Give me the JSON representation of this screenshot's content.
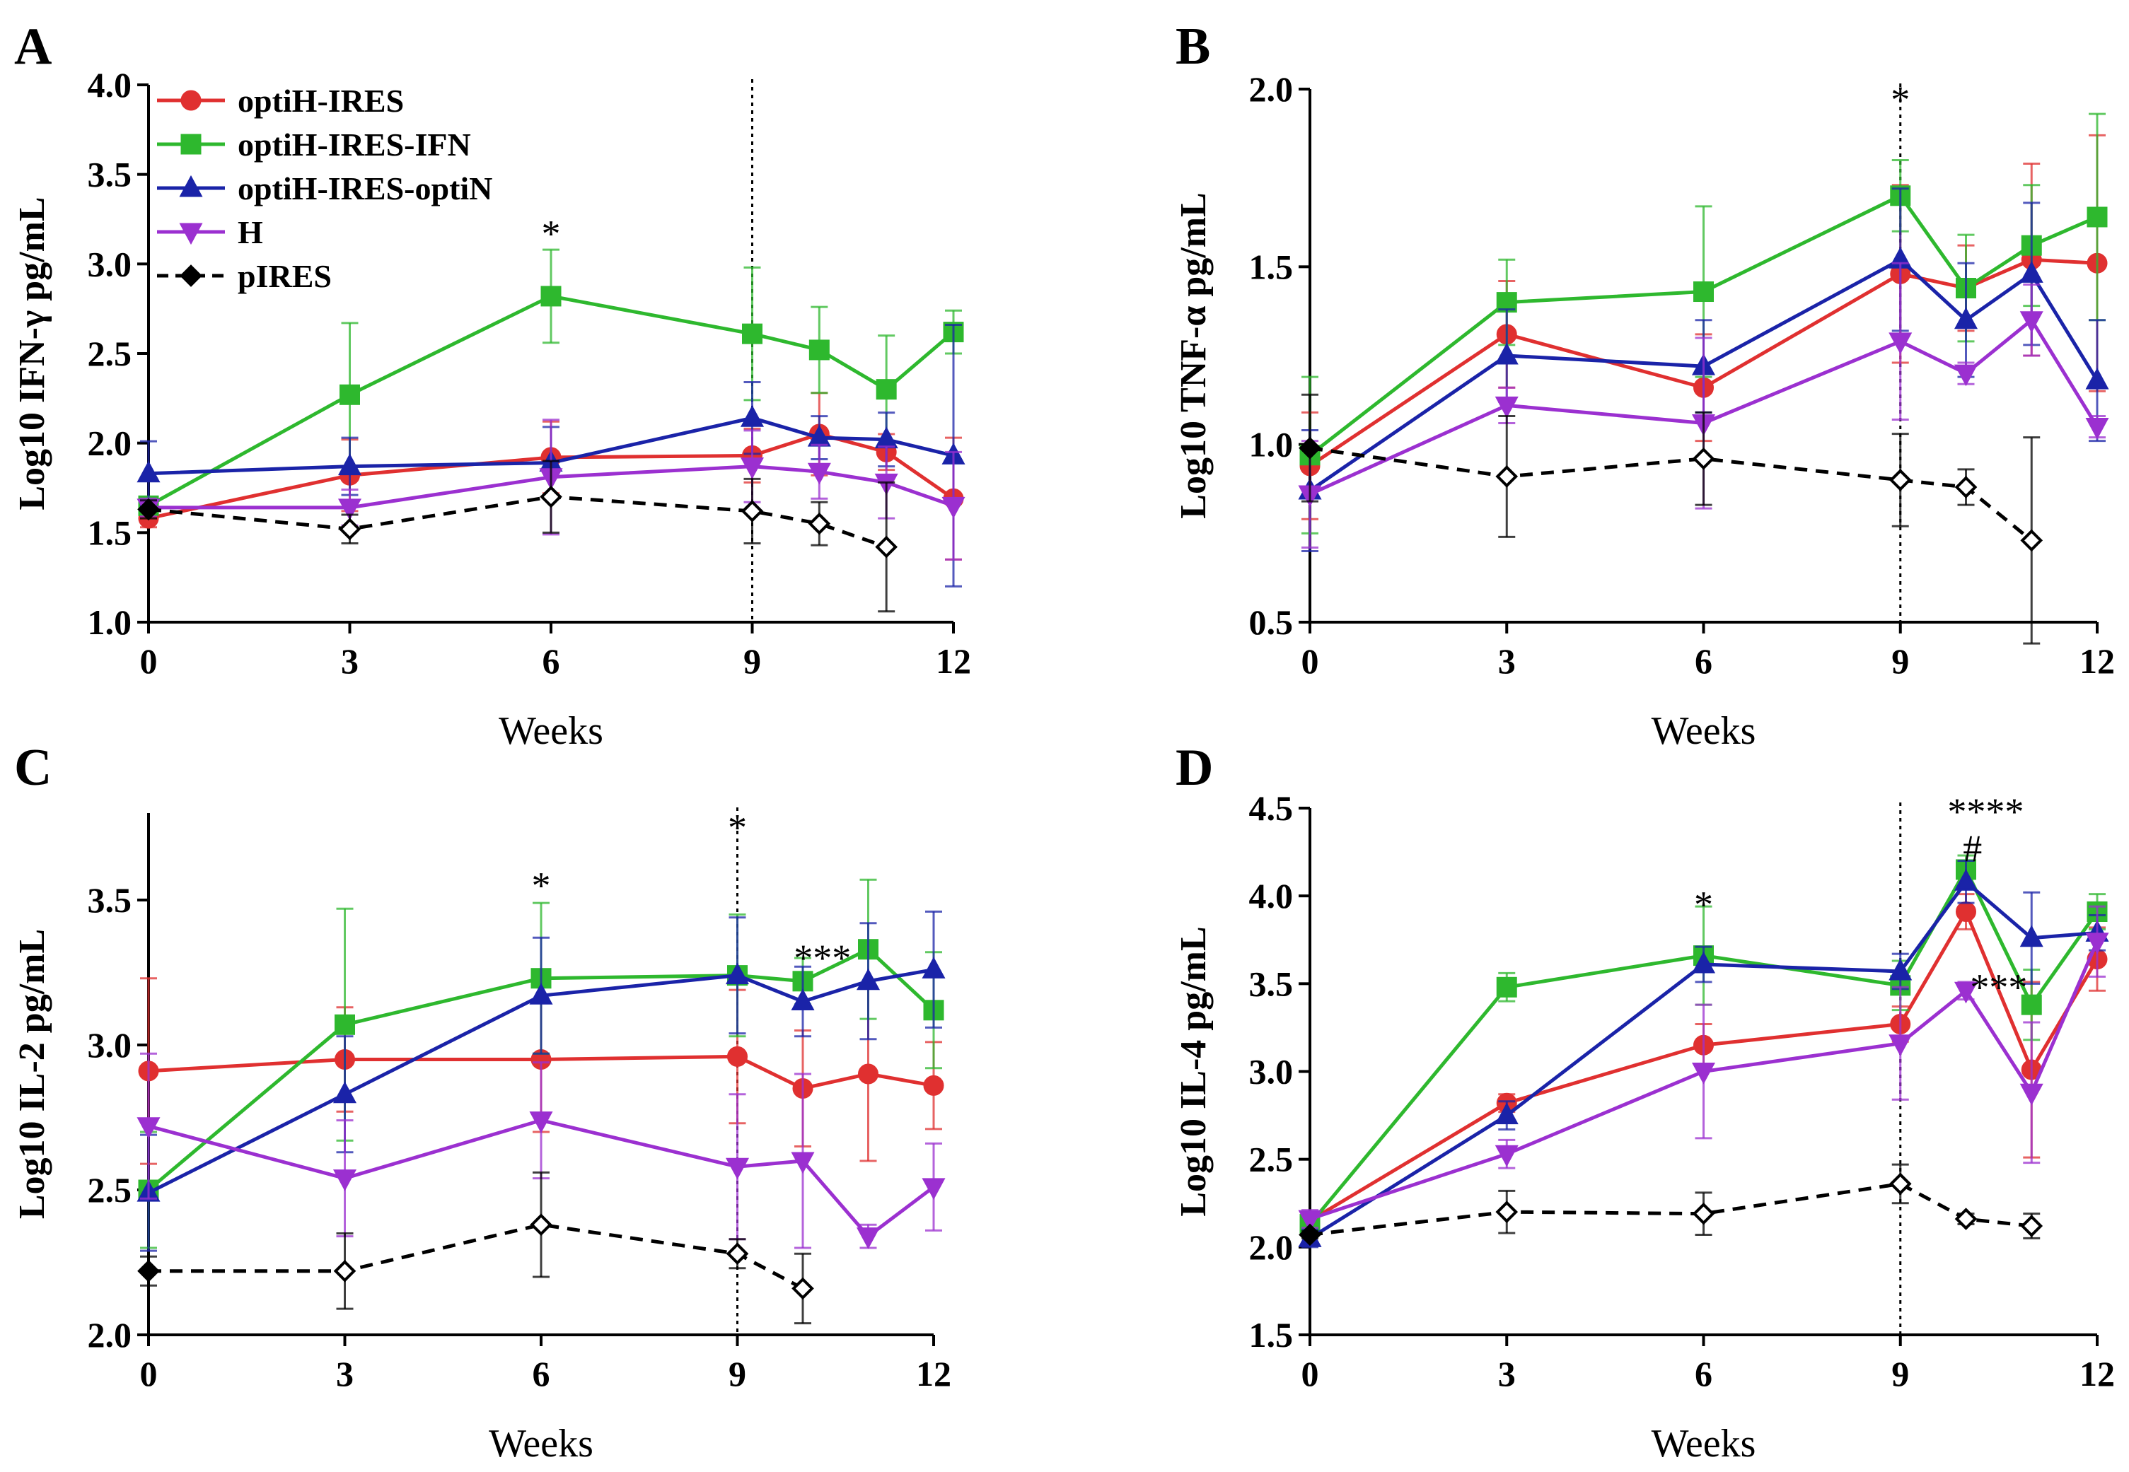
{
  "figure": {
    "legend": {
      "entries": [
        {
          "name": "optiH-IRES",
          "color": "#e03030",
          "marker": "circle",
          "dashed": false
        },
        {
          "name": "optiH-IRES-IFN",
          "color": "#2eb82e",
          "marker": "square",
          "dashed": false
        },
        {
          "name": "optiH-IRES-optiN",
          "color": "#1a23a8",
          "marker": "triangle-up",
          "dashed": false
        },
        {
          "name": "H",
          "color": "#9b30d0",
          "marker": "triangle-down",
          "dashed": false
        },
        {
          "name": "pIRES",
          "color": "#000000",
          "marker": "diamond",
          "dashed": true
        }
      ]
    }
  },
  "chart_data": [
    {
      "panel": "A",
      "type": "line",
      "xlabel": "Weeks",
      "ylabel": "Log10 IFN-γ pg/mL",
      "xlim": [
        0,
        12
      ],
      "ylim": [
        1.0,
        4.0
      ],
      "xticks": [
        0,
        3,
        6,
        9,
        12
      ],
      "xtick_labels": [
        "0",
        "3",
        "6",
        "9",
        "12"
      ],
      "yticks": [
        1.0,
        1.5,
        2.0,
        2.5,
        3.0,
        3.5,
        4.0
      ],
      "ytick_labels": [
        "1.0",
        "1.5",
        "2.0",
        "2.5",
        "3.0",
        "3.5",
        "4.0"
      ],
      "box": false,
      "vline": 9,
      "legend": true,
      "series": [
        {
          "name": "optiH-IRES",
          "x": [
            0,
            3,
            6,
            9,
            10,
            11,
            12
          ],
          "y": [
            1.58,
            1.82,
            1.92,
            1.93,
            2.05,
            1.95,
            1.69
          ],
          "err": [
            0.05,
            0.2,
            0.2,
            0.15,
            0.23,
            0.1,
            0.34
          ]
        },
        {
          "name": "optiH-IRES-IFN",
          "x": [
            0,
            3,
            6,
            9,
            10,
            11,
            12
          ],
          "y": [
            1.65,
            2.27,
            2.82,
            2.61,
            2.52,
            2.3,
            2.62
          ],
          "err": [
            0.05,
            0.4,
            0.26,
            0.37,
            0.24,
            0.3,
            0.12
          ]
        },
        {
          "name": "optiH-IRES-optiN",
          "x": [
            0,
            3,
            6,
            9,
            10,
            11,
            12
          ],
          "y": [
            1.83,
            1.87,
            1.89,
            2.14,
            2.03,
            2.02,
            1.93
          ],
          "err": [
            0.18,
            0.16,
            0.2,
            0.2,
            0.12,
            0.15,
            0.73
          ]
        },
        {
          "name": "H",
          "x": [
            0,
            3,
            6,
            9,
            10,
            11,
            12
          ],
          "y": [
            1.64,
            1.64,
            1.81,
            1.87,
            1.84,
            1.78,
            1.65
          ],
          "err": [
            0.05,
            0.1,
            0.32,
            0.2,
            0.15,
            0.2,
            0.3
          ]
        },
        {
          "name": "pIRES",
          "x": [
            0,
            3,
            6,
            9,
            10,
            11
          ],
          "y": [
            1.63,
            1.52,
            1.7,
            1.62,
            1.55,
            1.42
          ],
          "err": [
            0.05,
            0.08,
            0.2,
            0.18,
            0.12,
            0.36
          ]
        }
      ],
      "annotations": [
        {
          "text": "*",
          "x": 6,
          "y": 3.17
        }
      ]
    },
    {
      "panel": "B",
      "type": "line",
      "xlabel": "Weeks",
      "ylabel": "Log10 TNF-α pg/mL",
      "xlim": [
        0,
        12
      ],
      "ylim": [
        0.5,
        2.0
      ],
      "xticks": [
        0,
        3,
        6,
        9,
        12
      ],
      "xtick_labels": [
        "0",
        "3",
        "6",
        "9",
        "12"
      ],
      "yticks": [
        0.5,
        1.0,
        1.5,
        2.0
      ],
      "ytick_labels": [
        "0.5",
        "1.0",
        "1.5",
        "2.0"
      ],
      "box": false,
      "vline": 9,
      "legend": false,
      "series": [
        {
          "name": "optiH-IRES",
          "x": [
            0,
            3,
            6,
            9,
            10,
            11,
            12
          ],
          "y": [
            0.94,
            1.31,
            1.16,
            1.48,
            1.44,
            1.52,
            1.51
          ],
          "err": [
            0.15,
            0.15,
            0.15,
            0.25,
            0.12,
            0.27,
            0.36
          ]
        },
        {
          "name": "optiH-IRES-IFN",
          "x": [
            0,
            3,
            6,
            9,
            10,
            11,
            12
          ],
          "y": [
            0.97,
            1.4,
            1.43,
            1.7,
            1.44,
            1.56,
            1.64
          ],
          "err": [
            0.22,
            0.12,
            0.24,
            0.1,
            0.15,
            0.17,
            0.29
          ]
        },
        {
          "name": "optiH-IRES-optiN",
          "x": [
            0,
            3,
            6,
            9,
            10,
            11,
            12
          ],
          "y": [
            0.87,
            1.25,
            1.22,
            1.52,
            1.35,
            1.48,
            1.18
          ],
          "err": [
            0.17,
            0.13,
            0.13,
            0.2,
            0.16,
            0.2,
            0.17
          ]
        },
        {
          "name": "H",
          "x": [
            0,
            3,
            6,
            9,
            10,
            11,
            12
          ],
          "y": [
            0.86,
            1.11,
            1.06,
            1.29,
            1.2,
            1.35,
            1.05
          ],
          "err": [
            0.15,
            0.05,
            0.24,
            0.22,
            0.03,
            0.1,
            0.03
          ]
        },
        {
          "name": "pIRES",
          "x": [
            0,
            3,
            6,
            9,
            10,
            11
          ],
          "y": [
            0.99,
            0.91,
            0.96,
            0.9,
            0.88,
            0.73
          ],
          "err": [
            0.15,
            0.17,
            0.13,
            0.13,
            0.05,
            0.29
          ]
        }
      ],
      "annotations": [
        {
          "text": "*",
          "x": 9,
          "y": 1.97
        }
      ]
    },
    {
      "panel": "C",
      "type": "line",
      "xlabel": "Weeks",
      "ylabel": "Log10 IL-2 pg/mL",
      "xlim": [
        0,
        12
      ],
      "ylim": [
        2.0,
        3.8
      ],
      "xticks": [
        0,
        3,
        6,
        9,
        12
      ],
      "xtick_labels": [
        "0",
        "3",
        "6",
        "9",
        "12"
      ],
      "yticks": [
        2.0,
        2.5,
        3.0,
        3.5
      ],
      "ytick_labels": [
        "2.0",
        "2.5",
        "3.0",
        "3.5"
      ],
      "box": false,
      "vline": 9,
      "legend": false,
      "series": [
        {
          "name": "optiH-IRES",
          "x": [
            0,
            3,
            6,
            9,
            10,
            11,
            12
          ],
          "y": [
            2.91,
            2.95,
            2.95,
            2.96,
            2.85,
            2.9,
            2.86
          ],
          "err": [
            0.32,
            0.18,
            0.25,
            0.23,
            0.2,
            0.3,
            0.15
          ]
        },
        {
          "name": "optiH-IRES-IFN",
          "x": [
            0,
            3,
            6,
            9,
            10,
            11,
            12
          ],
          "y": [
            2.5,
            3.07,
            3.23,
            3.24,
            3.22,
            3.33,
            3.12
          ],
          "err": [
            0.2,
            0.4,
            0.26,
            0.21,
            0.08,
            0.24,
            0.2
          ]
        },
        {
          "name": "optiH-IRES-optiN",
          "x": [
            0,
            3,
            6,
            9,
            10,
            11,
            12
          ],
          "y": [
            2.49,
            2.83,
            3.17,
            3.24,
            3.15,
            3.22,
            3.26
          ],
          "err": [
            0.2,
            0.2,
            0.2,
            0.2,
            0.12,
            0.2,
            0.2
          ]
        },
        {
          "name": "H",
          "x": [
            0,
            3,
            6,
            9,
            10,
            11,
            12
          ],
          "y": [
            2.72,
            2.54,
            2.74,
            2.58,
            2.6,
            2.34,
            2.51
          ],
          "err": [
            0.25,
            0.2,
            0.2,
            0.25,
            0.3,
            0.04,
            0.15
          ]
        },
        {
          "name": "pIRES",
          "x": [
            0,
            3,
            6,
            9,
            10
          ],
          "y": [
            2.22,
            2.22,
            2.38,
            2.28,
            2.16
          ],
          "err": [
            0.05,
            0.13,
            0.18,
            0.05,
            0.12
          ]
        }
      ],
      "annotations": [
        {
          "text": "*",
          "x": 6,
          "y": 3.55
        },
        {
          "text": "*",
          "x": 9,
          "y": 3.75
        },
        {
          "text": "***",
          "x": 10.3,
          "y": 3.3
        }
      ]
    },
    {
      "panel": "D",
      "type": "line",
      "xlabel": "Weeks",
      "ylabel": "Log10 IL-4 pg/mL",
      "xlim": [
        0,
        12
      ],
      "ylim": [
        1.5,
        4.5
      ],
      "xticks": [
        0,
        3,
        6,
        9,
        12
      ],
      "xtick_labels": [
        "0",
        "3",
        "6",
        "9",
        "12"
      ],
      "yticks": [
        1.5,
        2.0,
        2.5,
        3.0,
        3.5,
        4.0,
        4.5
      ],
      "ytick_labels": [
        "1.5",
        "2.0",
        "2.5",
        "3.0",
        "3.5",
        "4.0",
        "4.5"
      ],
      "box": false,
      "vline": 9,
      "legend": false,
      "series": [
        {
          "name": "optiH-IRES",
          "x": [
            0,
            3,
            6,
            9,
            10,
            11,
            12
          ],
          "y": [
            2.15,
            2.82,
            3.15,
            3.27,
            3.91,
            3.01,
            3.64
          ],
          "err": [
            0.05,
            0.05,
            0.12,
            0.1,
            0.1,
            0.5,
            0.18
          ]
        },
        {
          "name": "optiH-IRES-IFN",
          "x": [
            0,
            3,
            6,
            9,
            10,
            11,
            12
          ],
          "y": [
            2.13,
            3.48,
            3.66,
            3.49,
            4.15,
            3.38,
            3.91
          ],
          "err": [
            0.05,
            0.08,
            0.28,
            0.14,
            0.08,
            0.2,
            0.1
          ]
        },
        {
          "name": "optiH-IRES-optiN",
          "x": [
            0,
            3,
            6,
            9,
            10,
            11,
            12
          ],
          "y": [
            2.05,
            2.75,
            3.61,
            3.57,
            4.08,
            3.76,
            3.79
          ],
          "err": [
            0.05,
            0.08,
            0.1,
            0.1,
            0.12,
            0.26,
            0.1
          ]
        },
        {
          "name": "H",
          "x": [
            0,
            3,
            6,
            9,
            10,
            11,
            12
          ],
          "y": [
            2.16,
            2.53,
            3.0,
            3.16,
            3.46,
            2.88,
            3.74
          ],
          "err": [
            0.05,
            0.08,
            0.38,
            0.32,
            0.05,
            0.4,
            0.2
          ]
        },
        {
          "name": "pIRES",
          "x": [
            0,
            3,
            6,
            9,
            10,
            11
          ],
          "y": [
            2.07,
            2.2,
            2.19,
            2.36,
            2.16,
            2.12
          ],
          "err": [
            0.02,
            0.12,
            0.12,
            0.11,
            0.03,
            0.07
          ]
        }
      ],
      "annotations": [
        {
          "text": "****",
          "x": 10.3,
          "y": 4.48
        },
        {
          "text": "#",
          "x": 10.1,
          "y": 4.27
        },
        {
          "text": "***",
          "x": 10.5,
          "y": 3.48
        },
        {
          "text": "*",
          "x": 6,
          "y": 3.95
        }
      ]
    }
  ]
}
